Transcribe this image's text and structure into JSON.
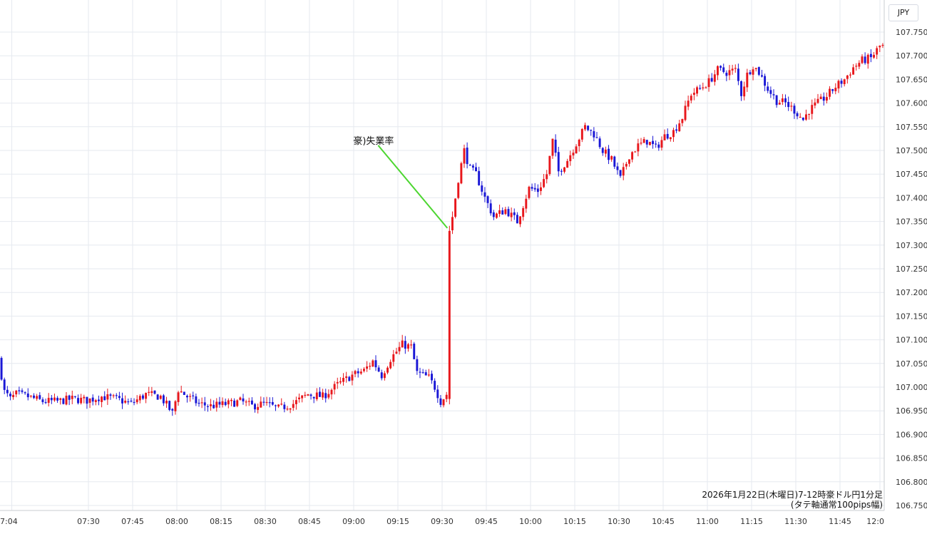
{
  "chart_data": {
    "type": "candlestick",
    "instrument_unit": "JPY",
    "caption_line1": "2026年1月22日(木曜日)7-12時豪ドル円1分足",
    "caption_line2": "(タテ軸通常100pips幅)",
    "annotation": "豪)失業率",
    "annotation_x": "09:32",
    "annotation_y": 107.33,
    "x_start": "07:00",
    "x_end": "12:00",
    "x_ticks": [
      "7:04",
      "07:30",
      "07:45",
      "08:00",
      "08:15",
      "08:30",
      "08:45",
      "09:00",
      "09:15",
      "09:30",
      "09:45",
      "10:00",
      "10:15",
      "10:30",
      "10:45",
      "11:00",
      "11:15",
      "11:30",
      "11:45",
      "12:0"
    ],
    "ylim": [
      106.75,
      107.75
    ],
    "y_ticks": [
      "106.750",
      "106.800",
      "106.850",
      "106.900",
      "106.950",
      "107.000",
      "107.050",
      "107.100",
      "107.150",
      "107.200",
      "107.250",
      "107.300",
      "107.350",
      "107.400",
      "107.450",
      "107.500",
      "107.550",
      "107.600",
      "107.650",
      "107.700",
      "107.750"
    ],
    "grid": true,
    "up_color": "#e8171c",
    "down_color": "#1a17d6",
    "annotation_color": "#4cd630",
    "path": [
      [
        "07:00",
        107.06
      ],
      [
        "07:02",
        106.99
      ],
      [
        "07:04",
        106.975
      ],
      [
        "07:06",
        106.985
      ],
      [
        "07:10",
        106.98
      ],
      [
        "07:15",
        106.97
      ],
      [
        "07:20",
        106.97
      ],
      [
        "07:25",
        106.975
      ],
      [
        "07:30",
        106.972
      ],
      [
        "07:35",
        106.98
      ],
      [
        "07:40",
        106.975
      ],
      [
        "07:45",
        106.965
      ],
      [
        "07:50",
        106.985
      ],
      [
        "07:55",
        106.98
      ],
      [
        "07:59",
        106.945
      ],
      [
        "08:01",
        106.995
      ],
      [
        "08:04",
        106.98
      ],
      [
        "08:08",
        106.965
      ],
      [
        "08:12",
        106.96
      ],
      [
        "08:18",
        106.965
      ],
      [
        "08:22",
        106.97
      ],
      [
        "08:26",
        106.96
      ],
      [
        "08:30",
        106.965
      ],
      [
        "08:35",
        106.955
      ],
      [
        "08:40",
        106.965
      ],
      [
        "08:45",
        106.985
      ],
      [
        "08:50",
        106.98
      ],
      [
        "08:55",
        107.005
      ],
      [
        "09:00",
        107.025
      ],
      [
        "09:04",
        107.035
      ],
      [
        "09:07",
        107.055
      ],
      [
        "09:10",
        107.025
      ],
      [
        "09:13",
        107.06
      ],
      [
        "09:17",
        107.09
      ],
      [
        "09:20",
        107.085
      ],
      [
        "09:22",
        107.03
      ],
      [
        "09:26",
        107.02
      ],
      [
        "09:28",
        107.0
      ],
      [
        "09:30",
        106.97
      ],
      [
        "09:32",
        106.985
      ],
      [
        "09:33",
        107.33
      ],
      [
        "09:34",
        107.36
      ],
      [
        "09:36",
        107.44
      ],
      [
        "09:38",
        107.5
      ],
      [
        "09:40",
        107.46
      ],
      [
        "09:42",
        107.45
      ],
      [
        "09:45",
        107.4
      ],
      [
        "09:48",
        107.36
      ],
      [
        "09:52",
        107.375
      ],
      [
        "09:56",
        107.35
      ],
      [
        "10:00",
        107.42
      ],
      [
        "10:03",
        107.415
      ],
      [
        "10:06",
        107.45
      ],
      [
        "10:08",
        107.52
      ],
      [
        "10:10",
        107.455
      ],
      [
        "10:13",
        107.48
      ],
      [
        "10:16",
        107.515
      ],
      [
        "10:19",
        107.55
      ],
      [
        "10:22",
        107.535
      ],
      [
        "10:25",
        107.5
      ],
      [
        "10:28",
        107.48
      ],
      [
        "10:31",
        107.44
      ],
      [
        "10:34",
        107.49
      ],
      [
        "10:37",
        107.51
      ],
      [
        "10:40",
        107.52
      ],
      [
        "10:43",
        107.505
      ],
      [
        "10:46",
        107.53
      ],
      [
        "10:49",
        107.54
      ],
      [
        "10:52",
        107.57
      ],
      [
        "10:55",
        107.62
      ],
      [
        "10:58",
        107.63
      ],
      [
        "11:01",
        107.645
      ],
      [
        "11:04",
        107.67
      ],
      [
        "11:07",
        107.665
      ],
      [
        "11:10",
        107.67
      ],
      [
        "11:12",
        107.62
      ],
      [
        "11:14",
        107.66
      ],
      [
        "11:16",
        107.68
      ],
      [
        "11:18",
        107.665
      ],
      [
        "11:21",
        107.63
      ],
      [
        "11:24",
        107.605
      ],
      [
        "11:27",
        107.6
      ],
      [
        "11:30",
        107.585
      ],
      [
        "11:33",
        107.565
      ],
      [
        "11:35",
        107.585
      ],
      [
        "11:38",
        107.6
      ],
      [
        "11:41",
        107.615
      ],
      [
        "11:44",
        107.635
      ],
      [
        "11:47",
        107.65
      ],
      [
        "11:50",
        107.675
      ],
      [
        "11:53",
        107.69
      ],
      [
        "11:56",
        107.695
      ],
      [
        "11:59",
        107.72
      ]
    ]
  }
}
